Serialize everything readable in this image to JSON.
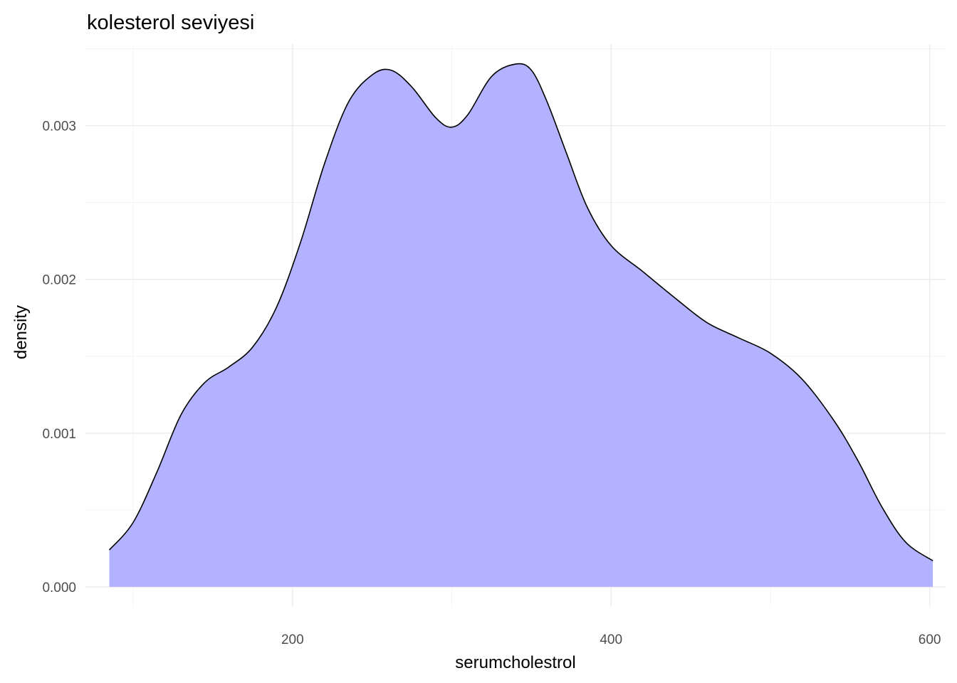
{
  "chart_data": {
    "type": "area",
    "title": "kolesterol seviyesi",
    "xlabel": "serumcholestrol",
    "ylabel": "density",
    "xlim": [
      70,
      610
    ],
    "ylim": [
      -0.00013,
      0.00353
    ],
    "x_ticks": [
      200,
      400,
      600
    ],
    "x_tick_labels": [
      "200",
      "400",
      "600"
    ],
    "y_ticks": [
      0,
      0.001,
      0.002,
      0.003
    ],
    "y_tick_labels": [
      "0.000",
      "0.001",
      "0.002",
      "0.003"
    ],
    "grid": true,
    "legend": "none",
    "fill_color": "#b2b2ff",
    "line_color": "#000000",
    "x": [
      85,
      100,
      115,
      130,
      145,
      160,
      175,
      190,
      205,
      220,
      235,
      250,
      262,
      275,
      290,
      300,
      310,
      325,
      340,
      350,
      360,
      372,
      385,
      400,
      420,
      440,
      460,
      480,
      500,
      520,
      540,
      555,
      570,
      585,
      602
    ],
    "y": [
      0.00024,
      0.00042,
      0.00075,
      0.00112,
      0.00133,
      0.00143,
      0.00156,
      0.00182,
      0.00224,
      0.00275,
      0.00315,
      0.00333,
      0.00336,
      0.00325,
      0.00305,
      0.00299,
      0.00307,
      0.00332,
      0.0034,
      0.00336,
      0.00315,
      0.00282,
      0.00247,
      0.00222,
      0.00205,
      0.00188,
      0.00172,
      0.00162,
      0.00152,
      0.00135,
      0.00108,
      0.00082,
      0.00052,
      0.00029,
      0.00017
    ]
  }
}
